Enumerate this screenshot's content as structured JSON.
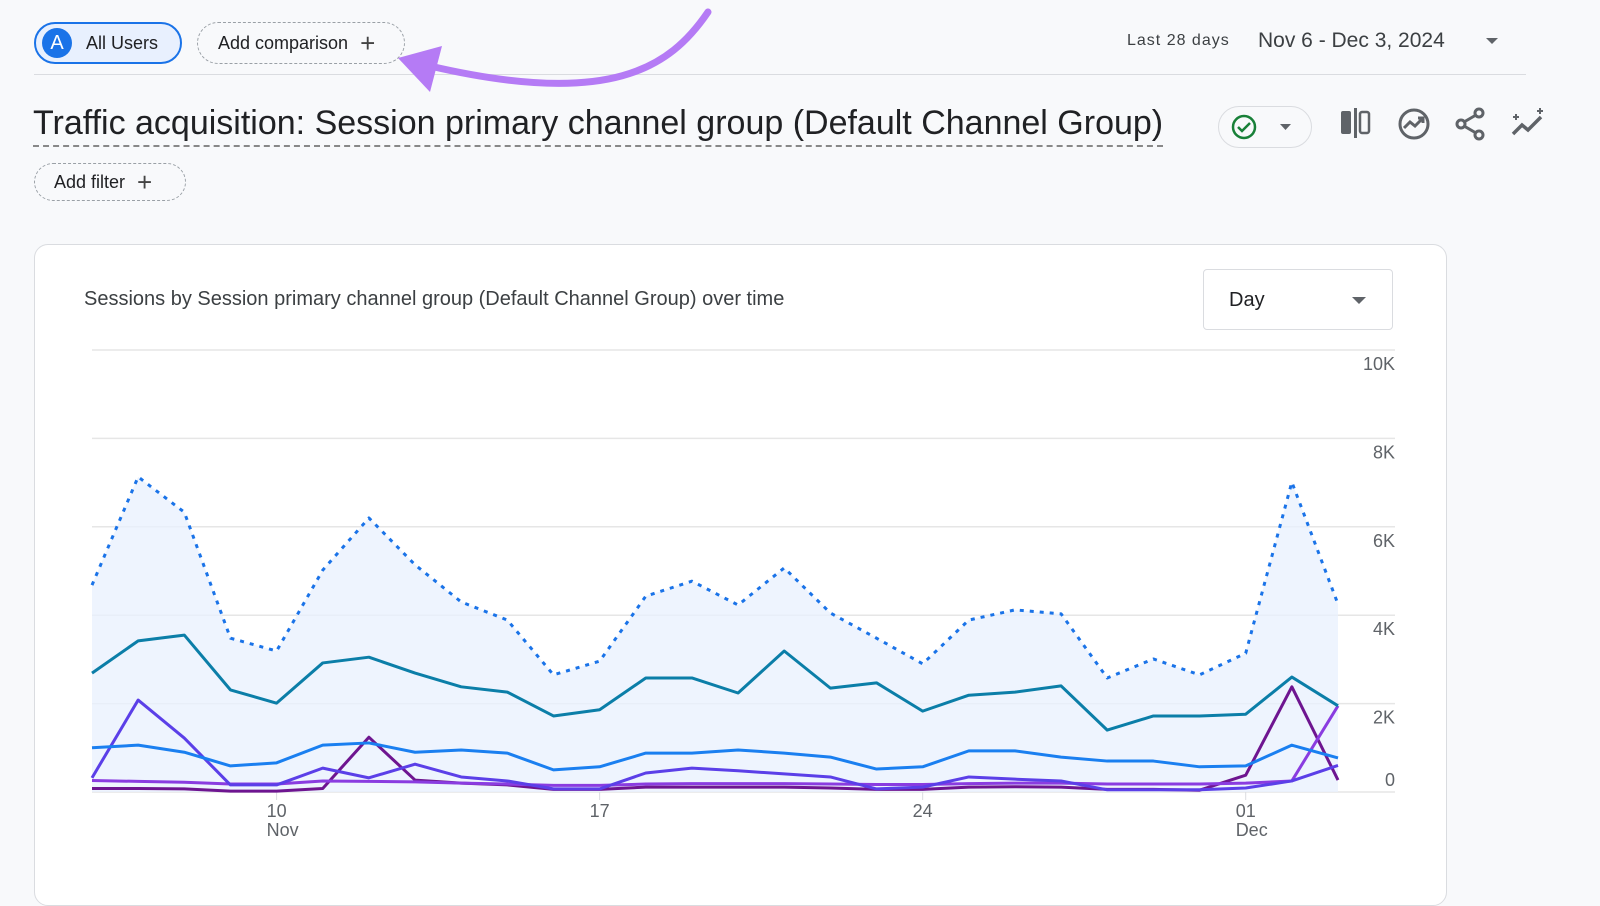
{
  "header": {
    "segment_avatar": "A",
    "segment": "All Users",
    "add_comparison": "Add comparison",
    "date_label": "Last 28 days",
    "date_range": "Nov 6 - Dec 3, 2024"
  },
  "report": {
    "title": "Traffic acquisition: Session primary channel group (Default Channel Group)",
    "add_filter": "Add filter",
    "status_icon": "check-circle-icon",
    "toolbar_icons": [
      "compare-columns-icon",
      "insights-icon",
      "share-icon",
      "sparkle-trend-icon"
    ]
  },
  "card": {
    "title": "Sessions by Session primary channel group (Default Channel Group) over time",
    "granularity": "Day"
  },
  "annotation": {
    "arrow_color": "#b57bf5"
  },
  "chart_data": {
    "type": "line",
    "x": [
      "2024-11-06",
      "2024-11-07",
      "2024-11-08",
      "2024-11-09",
      "2024-11-10",
      "2024-11-11",
      "2024-11-12",
      "2024-11-13",
      "2024-11-14",
      "2024-11-15",
      "2024-11-16",
      "2024-11-17",
      "2024-11-18",
      "2024-11-19",
      "2024-11-20",
      "2024-11-21",
      "2024-11-22",
      "2024-11-23",
      "2024-11-24",
      "2024-11-25",
      "2024-11-26",
      "2024-11-27",
      "2024-11-28",
      "2024-11-29",
      "2024-11-30",
      "2024-12-01",
      "2024-12-02",
      "2024-12-03"
    ],
    "x_ticks": [
      {
        "date": "2024-11-10",
        "label": "10",
        "sub": "Nov"
      },
      {
        "date": "2024-11-17",
        "label": "17",
        "sub": ""
      },
      {
        "date": "2024-11-24",
        "label": "24",
        "sub": ""
      },
      {
        "date": "2024-12-01",
        "label": "01",
        "sub": "Dec"
      }
    ],
    "y_ticks": [
      "0",
      "2K",
      "4K",
      "6K",
      "8K",
      "10K"
    ],
    "ylim": [
      0,
      10000
    ],
    "grid": true,
    "series": [
      {
        "color": "#1a73e8",
        "style": "dotted",
        "fill": true,
        "values": [
          4680,
          7130,
          6330,
          3480,
          3190,
          5020,
          6200,
          5140,
          4300,
          3890,
          2650,
          2960,
          4430,
          4770,
          4230,
          5070,
          4050,
          3480,
          2900,
          3890,
          4120,
          4030,
          2580,
          3010,
          2650,
          3140,
          7010,
          4250
        ]
      },
      {
        "color": "#0b7ea8",
        "style": "solid",
        "values": [
          2690,
          3420,
          3550,
          2310,
          2010,
          2920,
          3050,
          2690,
          2380,
          2260,
          1720,
          1860,
          2580,
          2580,
          2240,
          3190,
          2350,
          2470,
          1830,
          2190,
          2260,
          2400,
          1400,
          1720,
          1720,
          1760,
          2600,
          1950
        ]
      },
      {
        "color": "#1a7ff0",
        "style": "solid",
        "values": [
          1000,
          1060,
          900,
          590,
          660,
          1060,
          1110,
          900,
          950,
          880,
          500,
          570,
          880,
          880,
          950,
          880,
          790,
          520,
          570,
          930,
          930,
          790,
          700,
          700,
          570,
          590,
          1060,
          770
        ]
      },
      {
        "color": "#5b3fe8",
        "style": "solid",
        "values": [
          320,
          2080,
          1220,
          160,
          160,
          540,
          320,
          630,
          340,
          250,
          70,
          70,
          430,
          540,
          480,
          410,
          340,
          70,
          110,
          340,
          290,
          250,
          50,
          50,
          50,
          90,
          250,
          600
        ]
      },
      {
        "color": "#8a3ce0",
        "style": "solid",
        "values": [
          260,
          240,
          220,
          180,
          180,
          250,
          240,
          230,
          200,
          180,
          150,
          150,
          180,
          190,
          190,
          190,
          180,
          170,
          170,
          190,
          200,
          200,
          180,
          180,
          180,
          200,
          250,
          1950
        ]
      },
      {
        "color": "#6e1590",
        "style": "solid",
        "values": [
          80,
          80,
          70,
          20,
          20,
          80,
          1240,
          270,
          200,
          160,
          60,
          60,
          110,
          110,
          110,
          110,
          90,
          60,
          60,
          110,
          120,
          110,
          60,
          60,
          40,
          380,
          2380,
          270
        ]
      }
    ]
  }
}
